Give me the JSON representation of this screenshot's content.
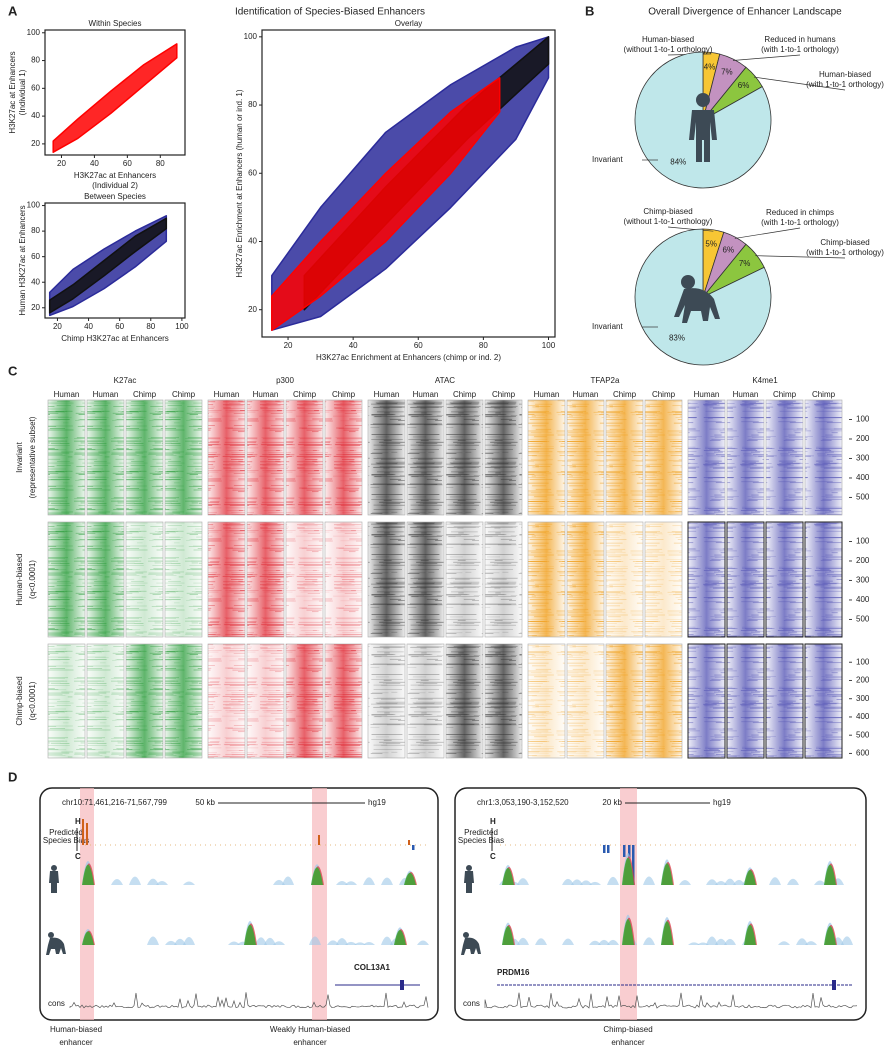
{
  "panel_labels": [
    "A",
    "B",
    "C",
    "D"
  ],
  "panel_a_title": "Identification of Species-Biased Enhancers",
  "panel_b_title": "Overall Divergence of Enhancer Landscape",
  "chart_data": [
    {
      "type": "scatter",
      "title": "Within Species",
      "xlabel": [
        "H3K27ac at Enhancers",
        "(Individual 2)"
      ],
      "ylabel": [
        "H3K27ac at Enhancers",
        "(Individual 1)"
      ],
      "xlim": [
        10,
        95
      ],
      "ylim": [
        12,
        102
      ],
      "xticks": [
        20,
        40,
        60,
        80
      ],
      "yticks": [
        20,
        40,
        60,
        80,
        100
      ],
      "series": [
        {
          "color": "#ff0000",
          "x": [
            15,
            30,
            50,
            70,
            90
          ],
          "ymin": [
            14,
            24,
            42,
            62,
            82
          ],
          "ymax": [
            22,
            38,
            58,
            77,
            92
          ]
        }
      ]
    },
    {
      "type": "scatter",
      "title": "Between Species",
      "xlabel": [
        "Chimp H3K27ac at Enhancers"
      ],
      "ylabel": [
        "Human H3K27ac at Enhancers"
      ],
      "xlim": [
        12,
        102
      ],
      "ylim": [
        12,
        102
      ],
      "xticks": [
        20,
        40,
        60,
        80,
        100
      ],
      "yticks": [
        20,
        40,
        60,
        80,
        100
      ],
      "series": [
        {
          "color": "#2b2b9a",
          "x": [
            15,
            30,
            50,
            70,
            90
          ],
          "ymin": [
            14,
            21,
            35,
            52,
            72
          ],
          "ymax": [
            32,
            50,
            66,
            80,
            92
          ]
        },
        {
          "color": "#111111",
          "x": [
            15,
            30,
            50,
            70,
            90
          ],
          "ymin": [
            16,
            27,
            45,
            64,
            82
          ],
          "ymax": [
            26,
            38,
            57,
            76,
            90
          ]
        }
      ]
    },
    {
      "type": "scatter",
      "title": "Overlay",
      "xlabel": [
        "H3K27ac Enrichment at Enhancers (chimp or ind. 2)"
      ],
      "ylabel": [
        "H3K27ac Enrichment at Enhancers (human or ind. 1)"
      ],
      "xlim": [
        12,
        102
      ],
      "ylim": [
        12,
        102
      ],
      "xticks": [
        20,
        40,
        60,
        80,
        100
      ],
      "yticks": [
        20,
        40,
        60,
        80,
        100
      ],
      "series": [
        {
          "color": "#2b2b9a",
          "x": [
            15,
            30,
            50,
            70,
            90,
            100
          ],
          "ymin": [
            14,
            18,
            32,
            50,
            70,
            88
          ],
          "ymax": [
            30,
            50,
            72,
            86,
            97,
            100
          ]
        },
        {
          "color": "#111111",
          "x": [
            25,
            50,
            75,
            100
          ],
          "ymin": [
            20,
            45,
            70,
            92
          ],
          "ymax": [
            30,
            56,
            80,
            100
          ]
        },
        {
          "color": "#ff0000",
          "x": [
            15,
            30,
            50,
            70,
            85
          ],
          "ymin": [
            14,
            24,
            40,
            60,
            78
          ],
          "ymax": [
            24,
            40,
            60,
            78,
            88
          ]
        }
      ]
    },
    {
      "type": "pie",
      "categories": [
        "Human-biased",
        "Reduced in humans",
        "Human-biased",
        "Invariant"
      ],
      "category_details": [
        "(without 1-to-1 orthology)",
        "(with 1-to-1 orthology)",
        "(with 1-to-1 orthology)",
        null
      ],
      "values": [
        4,
        7,
        6,
        84
      ],
      "value_labels": [
        "4%",
        "7%",
        "6%",
        "84%"
      ],
      "colors": [
        "#f7c634",
        "#c392c0",
        "#8cc63f",
        "#bfe7ea"
      ]
    },
    {
      "type": "pie",
      "categories": [
        "Chimp-biased",
        "Reduced in chimps",
        "Chimp-biased",
        "Invariant"
      ],
      "category_details": [
        "(without 1-to-1 orthology)",
        "(with 1-to-1 orthology)",
        "(with 1-to-1 orthology)",
        null
      ],
      "values": [
        5,
        6,
        7,
        83
      ],
      "value_labels": [
        "5%",
        "6%",
        "7%",
        "83%"
      ],
      "colors": [
        "#f7c634",
        "#c392c0",
        "#8cc63f",
        "#bfe7ea"
      ]
    }
  ],
  "heatmap": {
    "marks": [
      "K27ac",
      "p300",
      "ATAC",
      "TFAP2a",
      "K4me1"
    ],
    "colors": [
      "#2e9e3e",
      "#e0303a",
      "#333333",
      "#f0a020",
      "#5555b5"
    ],
    "columns": [
      "Human",
      "Human",
      "Chimp",
      "Chimp"
    ],
    "groups": [
      {
        "label": [
          "Invariant",
          "(representative subset)"
        ],
        "ylim": [
          0,
          590
        ],
        "yticks": [
          100,
          200,
          300,
          400,
          500
        ]
      },
      {
        "label": [
          "Human-biased",
          "(q<0.0001)"
        ],
        "ylim": [
          0,
          590
        ],
        "yticks": [
          100,
          200,
          300,
          400,
          500
        ]
      },
      {
        "label": [
          "Chimp-biased",
          "(q<0.0001)"
        ],
        "ylim": [
          0,
          625
        ],
        "yticks": [
          100,
          200,
          300,
          400,
          500,
          600
        ]
      }
    ]
  },
  "browser": [
    {
      "coordinates": "chr10:71,461,216-71,567,799",
      "scale": "50 kb",
      "assembly": "hg19",
      "bias_label": [
        "Predicted",
        "Species Bias"
      ],
      "bias_high": "H",
      "bias_low": "C",
      "gene": "COL13A1",
      "cons": "cons",
      "callouts": [
        [
          "Human-biased",
          "enhancer"
        ],
        [
          "Weakly Human-biased",
          "enhancer"
        ]
      ]
    },
    {
      "coordinates": "chr1:3,053,190-3,152,520",
      "scale": "20 kb",
      "assembly": "hg19",
      "bias_label": [
        "Predicted",
        "Species Bias"
      ],
      "bias_high": "H",
      "bias_low": "C",
      "gene": "PRDM16",
      "cons": "cons",
      "callouts": [
        [
          "Chimp-biased",
          "enhancer"
        ]
      ]
    }
  ]
}
